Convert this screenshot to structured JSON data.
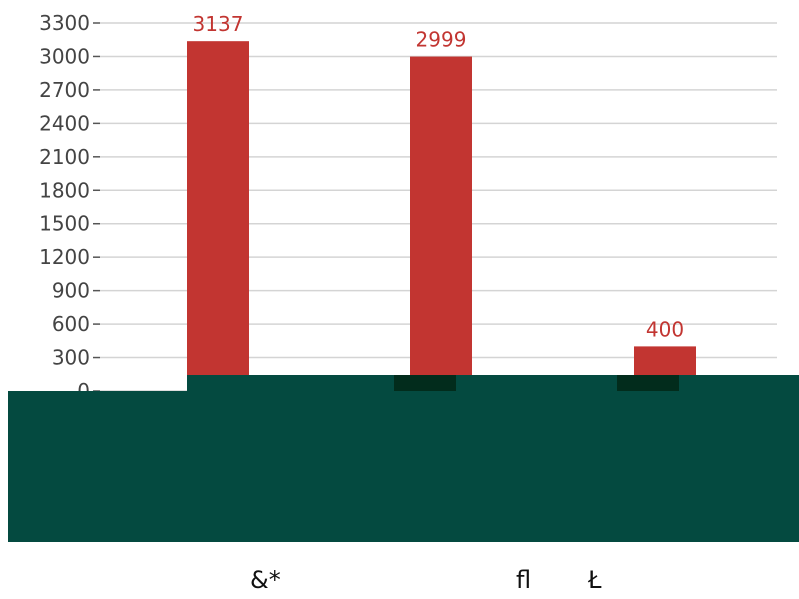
{
  "chart_data": {
    "type": "bar",
    "categories": [
      "",
      "",
      ""
    ],
    "values": [
      3137,
      2999,
      400
    ],
    "data_labels": [
      "3137",
      "2999",
      "400"
    ],
    "ylim": [
      0,
      3300
    ],
    "yticks": [
      0,
      300,
      600,
      900,
      1200,
      1500,
      1800,
      2100,
      2400,
      2700,
      3000,
      3300
    ],
    "grid": true,
    "colors": {
      "bar": "#c23531",
      "label": "#c23531",
      "grid": "#d4d4d4"
    }
  },
  "overlay": {
    "color": "#044a40",
    "footer_texts": [
      "&*",
      "ﬂ",
      "Ł"
    ]
  }
}
